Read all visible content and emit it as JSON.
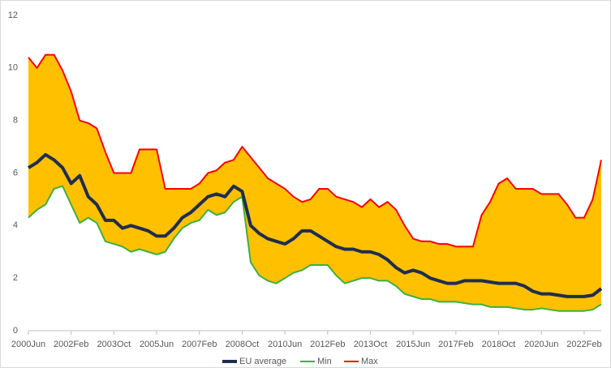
{
  "chart_data": {
    "type": "line",
    "x": [
      "2000-06",
      "2000-10",
      "2001-02",
      "2001-06",
      "2001-10",
      "2002-02",
      "2002-06",
      "2002-10",
      "2003-02",
      "2003-06",
      "2003-10",
      "2004-02",
      "2004-06",
      "2004-10",
      "2005-02",
      "2005-06",
      "2005-10",
      "2006-02",
      "2006-06",
      "2006-10",
      "2007-02",
      "2007-06",
      "2007-10",
      "2008-02",
      "2008-06",
      "2008-10",
      "2009-02",
      "2009-06",
      "2009-10",
      "2010-02",
      "2010-06",
      "2010-10",
      "2011-02",
      "2011-06",
      "2011-10",
      "2012-02",
      "2012-06",
      "2012-10",
      "2013-02",
      "2013-06",
      "2013-10",
      "2014-02",
      "2014-06",
      "2014-10",
      "2015-02",
      "2015-06",
      "2015-10",
      "2016-02",
      "2016-06",
      "2016-10",
      "2017-02",
      "2017-06",
      "2017-10",
      "2018-02",
      "2018-06",
      "2018-10",
      "2019-02",
      "2019-06",
      "2019-10",
      "2020-02",
      "2020-06",
      "2020-10",
      "2021-02",
      "2021-06",
      "2021-10",
      "2022-02",
      "2022-06",
      "2022-10"
    ],
    "series": [
      {
        "name": "EU average",
        "color": "#1f2d4e",
        "values": [
          6.2,
          6.4,
          6.7,
          6.5,
          6.2,
          5.6,
          5.9,
          5.1,
          4.8,
          4.2,
          4.2,
          3.9,
          4.0,
          3.9,
          3.8,
          3.6,
          3.6,
          3.9,
          4.3,
          4.5,
          4.8,
          5.1,
          5.2,
          5.1,
          5.5,
          5.3,
          4.0,
          3.7,
          3.5,
          3.4,
          3.3,
          3.5,
          3.8,
          3.8,
          3.6,
          3.4,
          3.2,
          3.1,
          3.1,
          3.0,
          3.0,
          2.9,
          2.7,
          2.4,
          2.2,
          2.3,
          2.2,
          2.0,
          1.9,
          1.8,
          1.8,
          1.9,
          1.9,
          1.9,
          1.85,
          1.8,
          1.8,
          1.8,
          1.7,
          1.5,
          1.4,
          1.4,
          1.35,
          1.3,
          1.3,
          1.3,
          1.35,
          1.6
        ]
      },
      {
        "name": "Min",
        "color": "#3cb043",
        "values": [
          4.3,
          4.6,
          4.8,
          5.4,
          5.5,
          4.8,
          4.1,
          4.3,
          4.1,
          3.4,
          3.3,
          3.2,
          3.0,
          3.1,
          3.0,
          2.9,
          3.0,
          3.5,
          3.9,
          4.1,
          4.2,
          4.6,
          4.4,
          4.5,
          4.9,
          5.1,
          2.6,
          2.1,
          1.9,
          1.8,
          2.0,
          2.2,
          2.3,
          2.5,
          2.5,
          2.5,
          2.1,
          1.8,
          1.9,
          2.0,
          2.0,
          1.9,
          1.9,
          1.7,
          1.4,
          1.3,
          1.2,
          1.2,
          1.1,
          1.1,
          1.1,
          1.05,
          1.0,
          1.0,
          0.9,
          0.9,
          0.9,
          0.85,
          0.8,
          0.8,
          0.85,
          0.8,
          0.75,
          0.75,
          0.75,
          0.75,
          0.8,
          1.0
        ]
      },
      {
        "name": "Max",
        "color": "#ff0000",
        "values": [
          10.4,
          10.0,
          10.5,
          10.5,
          9.9,
          9.1,
          8.0,
          7.9,
          7.7,
          6.8,
          6.0,
          6.0,
          6.0,
          6.9,
          6.9,
          6.9,
          5.4,
          5.4,
          5.4,
          5.4,
          5.6,
          6.0,
          6.1,
          6.4,
          6.5,
          7.0,
          6.6,
          6.2,
          5.8,
          5.6,
          5.4,
          5.1,
          4.9,
          5.0,
          5.4,
          5.4,
          5.1,
          5.0,
          4.9,
          4.7,
          5.0,
          4.7,
          4.9,
          4.6,
          4.0,
          3.5,
          3.4,
          3.4,
          3.3,
          3.3,
          3.2,
          3.2,
          3.2,
          4.4,
          4.9,
          5.6,
          5.8,
          5.4,
          5.4,
          5.4,
          5.2,
          5.2,
          5.2,
          4.8,
          4.3,
          4.3,
          5.0,
          6.5
        ]
      }
    ],
    "fill_color": "#ffc000",
    "xlim": [
      "2000-06",
      "2022-10"
    ],
    "xticks": [
      {
        "value": "2000-06",
        "label": "2000Jun"
      },
      {
        "value": "2002-02",
        "label": "2002Feb"
      },
      {
        "value": "2003-10",
        "label": "2003Oct"
      },
      {
        "value": "2005-06",
        "label": "2005Jun"
      },
      {
        "value": "2007-02",
        "label": "2007Feb"
      },
      {
        "value": "2008-10",
        "label": "2008Oct"
      },
      {
        "value": "2010-06",
        "label": "2010Jun"
      },
      {
        "value": "2012-02",
        "label": "2012Feb"
      },
      {
        "value": "2013-10",
        "label": "2013Oct"
      },
      {
        "value": "2015-06",
        "label": "2015Jun"
      },
      {
        "value": "2017-02",
        "label": "2017Feb"
      },
      {
        "value": "2018-10",
        "label": "2018Oct"
      },
      {
        "value": "2020-06",
        "label": "2020Jun"
      },
      {
        "value": "2022-02",
        "label": "2022Feb"
      }
    ],
    "ylim": [
      0,
      12
    ],
    "yticks": [
      0,
      2,
      4,
      6,
      8,
      10,
      12
    ],
    "grid": false,
    "legend": "bottom"
  }
}
